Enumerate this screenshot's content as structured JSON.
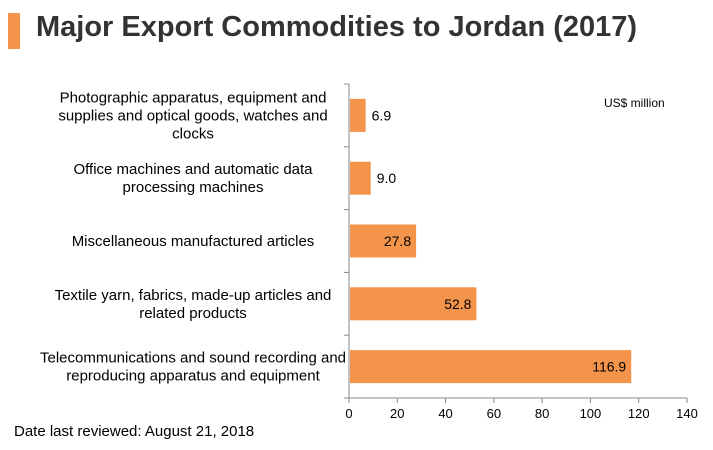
{
  "header": {
    "title": "Major Export Commodities to Jordan (2017)",
    "accent_color": "#f4944a"
  },
  "footer": {
    "date_reviewed": "Date last reviewed: August 21, 2018"
  },
  "chart_data": {
    "type": "bar",
    "orientation": "horizontal",
    "title": "Major Export Commodities to Jordan (2017)",
    "unit": "US$ million",
    "categories": [
      [
        "Photographic apparatus, equipment and",
        "supplies and optical goods, watches and",
        "clocks"
      ],
      [
        "Office machines and automatic data",
        "processing machines"
      ],
      [
        "Miscellaneous manufactured articles"
      ],
      [
        "Textile yarn, fabrics, made-up articles and",
        "related products"
      ],
      [
        "Telecommunications and sound recording and",
        "reproducing apparatus and equipment"
      ]
    ],
    "values": [
      6.9,
      9.0,
      27.8,
      52.8,
      116.9
    ],
    "value_labels": [
      "6.9",
      "9.0",
      "27.8",
      "52.8",
      "116.9"
    ],
    "xlim": [
      0,
      140
    ],
    "xticks": [
      0,
      20,
      40,
      60,
      80,
      100,
      120,
      140
    ],
    "bar_color": "#f4944a",
    "grid": false,
    "legend": "none"
  }
}
